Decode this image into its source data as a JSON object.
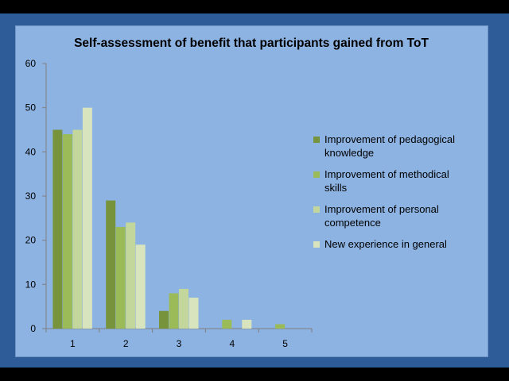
{
  "chart_data": {
    "type": "bar",
    "title": "Self-assessment of benefit that participants gained from ToT",
    "categories": [
      "1",
      "2",
      "3",
      "4",
      "5"
    ],
    "ylim": [
      0,
      60
    ],
    "yticks": [
      "0",
      "10",
      "20",
      "30",
      "40",
      "50",
      "60"
    ],
    "grid": false,
    "legend_position": "right",
    "series": [
      {
        "name": "Improvement of pedagogical knowledge",
        "color": "#77933c",
        "values": [
          45,
          29,
          4,
          0,
          0
        ]
      },
      {
        "name": "Improvement of methodical skills",
        "color": "#9bbb59",
        "values": [
          44,
          23,
          8,
          2,
          1
        ]
      },
      {
        "name": "Improvement of personal competence",
        "color": "#c3d69b",
        "values": [
          45,
          24,
          9,
          0,
          0
        ]
      },
      {
        "name": "New experience in general",
        "color": "#d7e4bd",
        "values": [
          50,
          19,
          7,
          2,
          0
        ]
      }
    ]
  }
}
